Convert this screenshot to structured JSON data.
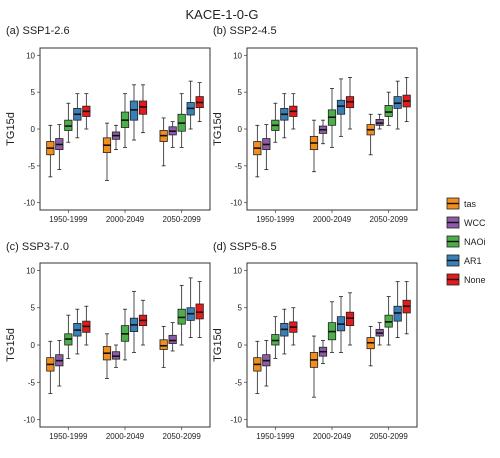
{
  "figure": {
    "title": "KACE-1-0-G",
    "ylabel": "TG15d",
    "periods": [
      "1950-1999",
      "2000-2049",
      "2050-2099"
    ],
    "yticks": [
      -10,
      -5,
      0,
      5,
      10
    ],
    "legend": [
      {
        "name": "tas",
        "color": "#F28E1C"
      },
      {
        "name": "WCC",
        "color": "#8E5BA6"
      },
      {
        "name": "NAOi",
        "color": "#4DAF4A"
      },
      {
        "name": "AR1",
        "color": "#3B7FB8"
      },
      {
        "name": "None",
        "color": "#E41A1C"
      }
    ]
  },
  "chart_data": [
    {
      "type": "box",
      "title": "(a) SSP1-2.6",
      "ylabel": "TG15d",
      "ylim": [
        -11,
        11
      ],
      "categories": [
        "1950-1999",
        "2000-2049",
        "2050-2099"
      ],
      "series": [
        {
          "name": "tas",
          "boxes": [
            {
              "min": -6.5,
              "q1": -3.5,
              "median": -2.6,
              "q3": -1.7,
              "max": 0.5
            },
            {
              "min": -7,
              "q1": -3.2,
              "median": -2.2,
              "q3": -1.2,
              "max": 0.8
            },
            {
              "min": -5,
              "q1": -1.7,
              "median": -0.9,
              "q3": -0.2,
              "max": 1.5
            }
          ]
        },
        {
          "name": "WCC",
          "boxes": [
            {
              "min": -5.5,
              "q1": -2.8,
              "median": -2.1,
              "q3": -1.3,
              "max": 0.6
            },
            {
              "min": -2.8,
              "q1": -1.4,
              "median": -0.9,
              "q3": -0.4,
              "max": 0.5
            },
            {
              "min": -2.5,
              "q1": -0.8,
              "median": -0.3,
              "q3": 0.3,
              "max": 1.0
            }
          ]
        },
        {
          "name": "NAOi",
          "boxes": [
            {
              "min": -1.8,
              "q1": -0.2,
              "median": 0.4,
              "q3": 1.2,
              "max": 3.5
            },
            {
              "min": -2.5,
              "q1": 0.2,
              "median": 1.2,
              "q3": 2.3,
              "max": 4.8
            },
            {
              "min": -2.5,
              "q1": -0.3,
              "median": 0.8,
              "q3": 2.0,
              "max": 4.8
            }
          ]
        },
        {
          "name": "AR1",
          "boxes": [
            {
              "min": -1.2,
              "q1": 1.2,
              "median": 2.0,
              "q3": 2.8,
              "max": 4.8
            },
            {
              "min": -1.5,
              "q1": 1.2,
              "median": 2.6,
              "q3": 3.8,
              "max": 6.0
            },
            {
              "min": 0.0,
              "q1": 1.9,
              "median": 2.8,
              "q3": 3.6,
              "max": 6.5
            }
          ]
        },
        {
          "name": "None",
          "boxes": [
            {
              "min": 0.0,
              "q1": 1.7,
              "median": 2.4,
              "q3": 3.1,
              "max": 4.8
            },
            {
              "min": -0.5,
              "q1": 2.0,
              "median": 3.0,
              "q3": 3.8,
              "max": 6.0
            },
            {
              "min": 1.0,
              "q1": 2.9,
              "median": 3.6,
              "q3": 4.4,
              "max": 6.3
            }
          ]
        }
      ]
    },
    {
      "type": "box",
      "title": "(b) SSP2-4.5",
      "ylabel": "TG15d",
      "ylim": [
        -11,
        11
      ],
      "categories": [
        "1950-1999",
        "2000-2049",
        "2050-2099"
      ],
      "series": [
        {
          "name": "tas",
          "boxes": [
            {
              "min": -6.5,
              "q1": -3.5,
              "median": -2.6,
              "q3": -1.7,
              "max": 0.5
            },
            {
              "min": -5.8,
              "q1": -2.8,
              "median": -1.9,
              "q3": -1.0,
              "max": 1.2
            },
            {
              "min": -3.5,
              "q1": -0.8,
              "median": -0.1,
              "q3": 0.6,
              "max": 2.0
            }
          ]
        },
        {
          "name": "WCC",
          "boxes": [
            {
              "min": -5.5,
              "q1": -2.8,
              "median": -2.1,
              "q3": -1.3,
              "max": 0.6
            },
            {
              "min": -2.0,
              "q1": -0.6,
              "median": -0.1,
              "q3": 0.4,
              "max": 1.2
            },
            {
              "min": 0.0,
              "q1": 0.5,
              "median": 0.8,
              "q3": 1.3,
              "max": 2.0
            }
          ]
        },
        {
          "name": "NAOi",
          "boxes": [
            {
              "min": -1.8,
              "q1": -0.2,
              "median": 0.5,
              "q3": 1.2,
              "max": 3.5
            },
            {
              "min": -2.5,
              "q1": 0.5,
              "median": 1.6,
              "q3": 2.6,
              "max": 5.5
            },
            {
              "min": 0.5,
              "q1": 1.7,
              "median": 2.3,
              "q3": 3.2,
              "max": 5.0
            }
          ]
        },
        {
          "name": "AR1",
          "boxes": [
            {
              "min": -1.2,
              "q1": 1.2,
              "median": 2.0,
              "q3": 2.8,
              "max": 4.8
            },
            {
              "min": -1.0,
              "q1": 2.0,
              "median": 3.1,
              "q3": 3.9,
              "max": 6.8
            },
            {
              "min": 0.0,
              "q1": 2.8,
              "median": 3.5,
              "q3": 4.4,
              "max": 6.5
            }
          ]
        },
        {
          "name": "None",
          "boxes": [
            {
              "min": 0.0,
              "q1": 1.7,
              "median": 2.4,
              "q3": 3.1,
              "max": 4.8
            },
            {
              "min": 0.0,
              "q1": 2.9,
              "median": 3.7,
              "q3": 4.4,
              "max": 7.0
            },
            {
              "min": 1.0,
              "q1": 3.0,
              "median": 3.8,
              "q3": 4.6,
              "max": 7.0
            }
          ]
        }
      ]
    },
    {
      "type": "box",
      "title": "(c) SSP3-7.0",
      "ylabel": "TG15d",
      "ylim": [
        -11,
        11
      ],
      "categories": [
        "1950-1999",
        "2000-2049",
        "2050-2099"
      ],
      "series": [
        {
          "name": "tas",
          "boxes": [
            {
              "min": -6.5,
              "q1": -3.5,
              "median": -2.6,
              "q3": -1.7,
              "max": 0.5
            },
            {
              "min": -4.5,
              "q1": -2.0,
              "median": -1.1,
              "q3": -0.2,
              "max": 1.5
            },
            {
              "min": -3.0,
              "q1": -0.6,
              "median": -0.1,
              "q3": 0.7,
              "max": 2.5
            }
          ]
        },
        {
          "name": "WCC",
          "boxes": [
            {
              "min": -5.5,
              "q1": -2.8,
              "median": -2.1,
              "q3": -1.3,
              "max": 0.6
            },
            {
              "min": -3.0,
              "q1": -1.9,
              "median": -1.5,
              "q3": -0.9,
              "max": 0.0
            },
            {
              "min": -0.8,
              "q1": 0.2,
              "median": 0.6,
              "q3": 1.3,
              "max": 3.0
            }
          ]
        },
        {
          "name": "NAOi",
          "boxes": [
            {
              "min": -1.8,
              "q1": 0.0,
              "median": 0.8,
              "q3": 1.5,
              "max": 4.0
            },
            {
              "min": -2.0,
              "q1": 0.5,
              "median": 1.5,
              "q3": 2.6,
              "max": 4.8
            },
            {
              "min": 0.0,
              "q1": 2.8,
              "median": 3.7,
              "q3": 4.8,
              "max": 8.0
            }
          ]
        },
        {
          "name": "AR1",
          "boxes": [
            {
              "min": -1.2,
              "q1": 1.2,
              "median": 2.0,
              "q3": 2.9,
              "max": 4.8
            },
            {
              "min": -1.0,
              "q1": 1.8,
              "median": 2.7,
              "q3": 3.6,
              "max": 7.2
            },
            {
              "min": 1.0,
              "q1": 3.3,
              "median": 4.2,
              "q3": 5.0,
              "max": 9.0
            }
          ]
        },
        {
          "name": "None",
          "boxes": [
            {
              "min": 0.0,
              "q1": 1.7,
              "median": 2.5,
              "q3": 3.2,
              "max": 5.2
            },
            {
              "min": 0.0,
              "q1": 2.6,
              "median": 3.3,
              "q3": 4.0,
              "max": 6.0
            },
            {
              "min": 1.0,
              "q1": 3.5,
              "median": 4.4,
              "q3": 5.5,
              "max": 8.5
            }
          ]
        }
      ]
    },
    {
      "type": "box",
      "title": "(d) SSP5-8.5",
      "ylabel": "TG15d",
      "ylim": [
        -11,
        11
      ],
      "categories": [
        "1950-1999",
        "2000-2049",
        "2050-2099"
      ],
      "series": [
        {
          "name": "tas",
          "boxes": [
            {
              "min": -6.5,
              "q1": -3.5,
              "median": -2.6,
              "q3": -1.7,
              "max": 0.5
            },
            {
              "min": -7.0,
              "q1": -3.0,
              "median": -2.0,
              "q3": -1.0,
              "max": 1.2
            },
            {
              "min": -2.8,
              "q1": -0.5,
              "median": 0.3,
              "q3": 1.0,
              "max": 2.5
            }
          ]
        },
        {
          "name": "WCC",
          "boxes": [
            {
              "min": -5.5,
              "q1": -2.8,
              "median": -2.1,
              "q3": -1.3,
              "max": 0.6
            },
            {
              "min": -2.5,
              "q1": -1.5,
              "median": -0.9,
              "q3": -0.3,
              "max": 0.6
            },
            {
              "min": 0.0,
              "q1": 1.2,
              "median": 1.6,
              "q3": 2.1,
              "max": 3.0
            }
          ]
        },
        {
          "name": "NAOi",
          "boxes": [
            {
              "min": -1.8,
              "q1": 0.0,
              "median": 0.6,
              "q3": 1.4,
              "max": 3.8
            },
            {
              "min": -1.0,
              "q1": 0.7,
              "median": 1.8,
              "q3": 3.0,
              "max": 5.8
            },
            {
              "min": 0.0,
              "q1": 2.4,
              "median": 3.1,
              "q3": 4.0,
              "max": 6.5
            }
          ]
        },
        {
          "name": "AR1",
          "boxes": [
            {
              "min": -1.2,
              "q1": 1.2,
              "median": 2.1,
              "q3": 2.9,
              "max": 4.8
            },
            {
              "min": -1.0,
              "q1": 1.9,
              "median": 2.8,
              "q3": 3.8,
              "max": 6.5
            },
            {
              "min": 1.0,
              "q1": 3.2,
              "median": 4.3,
              "q3": 5.2,
              "max": 8.5
            }
          ]
        },
        {
          "name": "None",
          "boxes": [
            {
              "min": 0.0,
              "q1": 1.7,
              "median": 2.4,
              "q3": 3.1,
              "max": 5.0
            },
            {
              "min": 0.0,
              "q1": 2.6,
              "median": 3.6,
              "q3": 4.4,
              "max": 7.0
            },
            {
              "min": 1.5,
              "q1": 4.3,
              "median": 5.2,
              "q3": 6.0,
              "max": 8.5
            }
          ]
        }
      ]
    }
  ]
}
